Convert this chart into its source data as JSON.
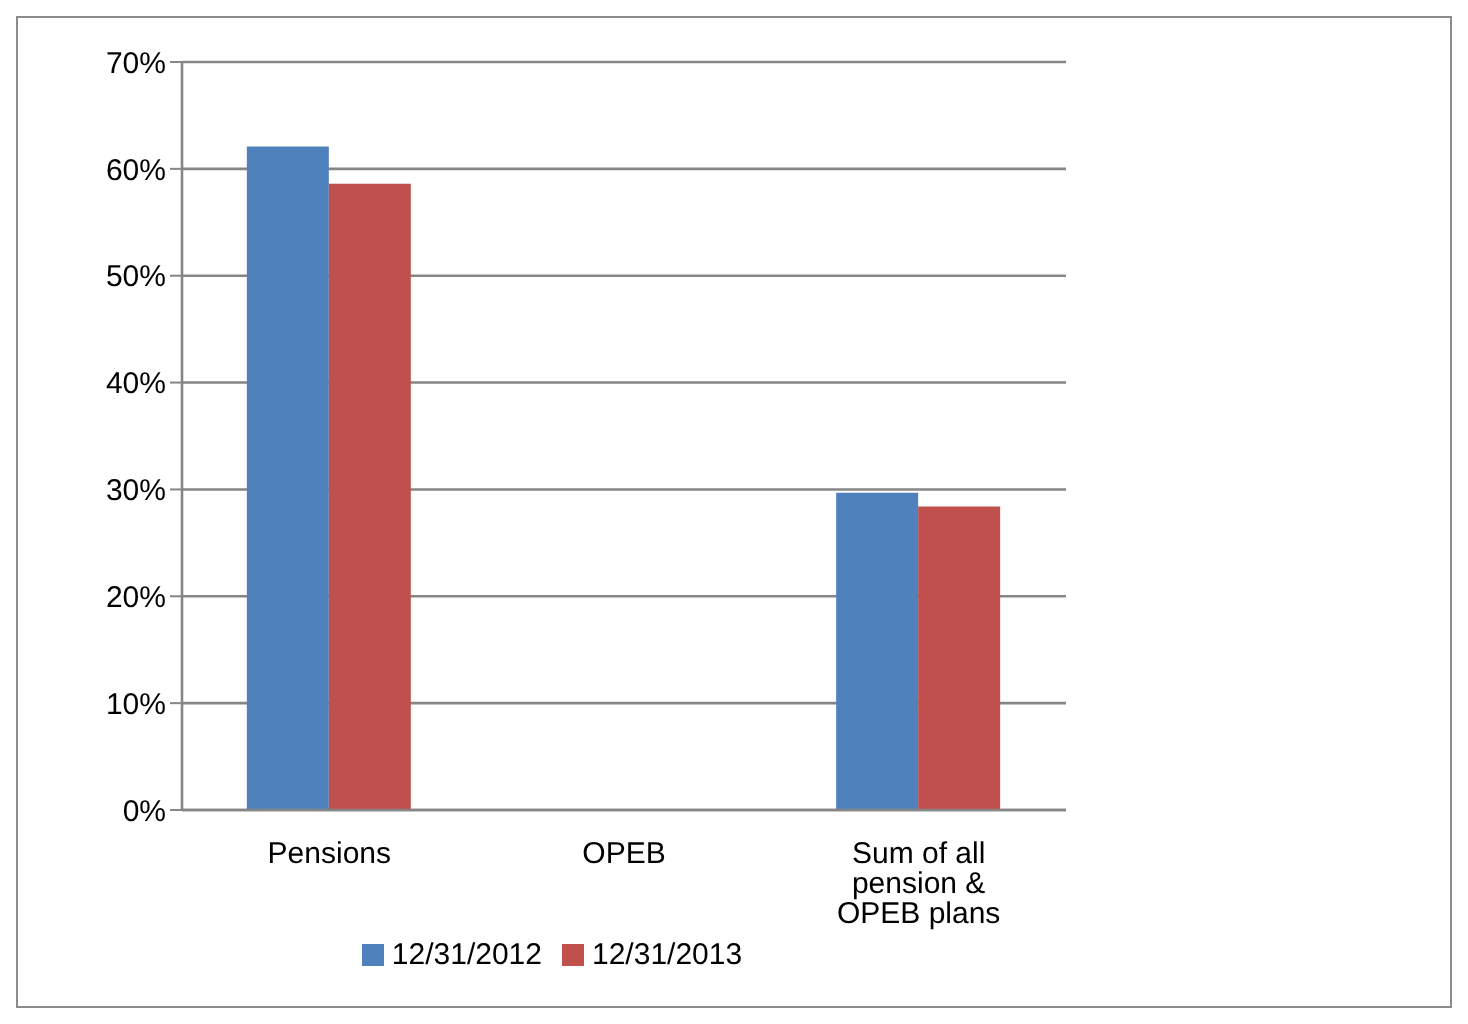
{
  "chart_data": {
    "type": "bar",
    "categories": [
      "Pensions",
      "OPEB",
      "Sum of all pension & OPEB plans"
    ],
    "series": [
      {
        "name": "12/31/2012",
        "color": "#4f81bd",
        "values": [
          62.1,
          null,
          29.7
        ]
      },
      {
        "name": "12/31/2013",
        "color": "#c0504d",
        "values": [
          58.6,
          null,
          28.4
        ]
      }
    ],
    "ylim": [
      0,
      70
    ],
    "yticks": [
      {
        "value": 0,
        "label": "0%"
      },
      {
        "value": 10,
        "label": "10%"
      },
      {
        "value": 20,
        "label": "20%"
      },
      {
        "value": 30,
        "label": "30%"
      },
      {
        "value": 40,
        "label": "40%"
      },
      {
        "value": 50,
        "label": "50%"
      },
      {
        "value": 60,
        "label": "60%"
      },
      {
        "value": 70,
        "label": "70%"
      }
    ],
    "grid": "y",
    "legend": "bottom"
  }
}
